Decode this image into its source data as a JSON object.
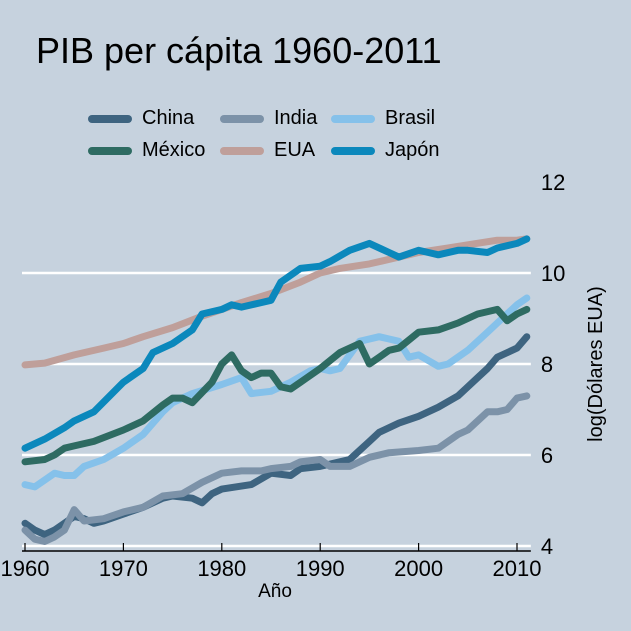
{
  "chart_data": {
    "type": "line",
    "title": "PIB per cápita 1960-2011",
    "xlabel": "Año",
    "ylabel": "log(Dólares EUA)",
    "xlim": [
      1960,
      2011
    ],
    "ylim": [
      4,
      12
    ],
    "x_ticks": [
      1960,
      1970,
      1980,
      1990,
      2000,
      2010
    ],
    "y_ticks": [
      4,
      6,
      8,
      10,
      12
    ],
    "y_axis_side": "right",
    "grid": "horizontal",
    "legend_position": "top",
    "legend_columns": 3,
    "background_color": "#c6d2de",
    "series": [
      {
        "name": "China",
        "color": "#3e6480",
        "points": [
          [
            1960,
            4.5
          ],
          [
            1961,
            4.35
          ],
          [
            1962,
            4.25
          ],
          [
            1963,
            4.35
          ],
          [
            1964,
            4.5
          ],
          [
            1965,
            4.65
          ],
          [
            1966,
            4.6
          ],
          [
            1967,
            4.5
          ],
          [
            1968,
            4.55
          ],
          [
            1970,
            4.7
          ],
          [
            1972,
            4.85
          ],
          [
            1974,
            5.05
          ],
          [
            1975,
            5.1
          ],
          [
            1977,
            5.05
          ],
          [
            1978,
            4.95
          ],
          [
            1979,
            5.15
          ],
          [
            1980,
            5.25
          ],
          [
            1983,
            5.35
          ],
          [
            1985,
            5.6
          ],
          [
            1987,
            5.55
          ],
          [
            1988,
            5.7
          ],
          [
            1990,
            5.75
          ],
          [
            1992,
            5.85
          ],
          [
            1993,
            5.9
          ],
          [
            1995,
            6.3
          ],
          [
            1996,
            6.5
          ],
          [
            1998,
            6.7
          ],
          [
            2000,
            6.85
          ],
          [
            2002,
            7.05
          ],
          [
            2004,
            7.3
          ],
          [
            2005,
            7.5
          ],
          [
            2007,
            7.9
          ],
          [
            2008,
            8.15
          ],
          [
            2010,
            8.35
          ],
          [
            2011,
            8.6
          ]
        ]
      },
      {
        "name": "India",
        "color": "#7c92a8",
        "points": [
          [
            1960,
            4.35
          ],
          [
            1961,
            4.15
          ],
          [
            1962,
            4.1
          ],
          [
            1963,
            4.2
          ],
          [
            1964,
            4.35
          ],
          [
            1965,
            4.8
          ],
          [
            1966,
            4.55
          ],
          [
            1968,
            4.6
          ],
          [
            1970,
            4.75
          ],
          [
            1972,
            4.85
          ],
          [
            1974,
            5.1
          ],
          [
            1976,
            5.15
          ],
          [
            1978,
            5.4
          ],
          [
            1980,
            5.6
          ],
          [
            1982,
            5.65
          ],
          [
            1984,
            5.65
          ],
          [
            1985,
            5.7
          ],
          [
            1987,
            5.75
          ],
          [
            1988,
            5.85
          ],
          [
            1990,
            5.9
          ],
          [
            1991,
            5.75
          ],
          [
            1993,
            5.75
          ],
          [
            1995,
            5.95
          ],
          [
            1997,
            6.05
          ],
          [
            2000,
            6.1
          ],
          [
            2002,
            6.15
          ],
          [
            2004,
            6.45
          ],
          [
            2005,
            6.55
          ],
          [
            2007,
            6.95
          ],
          [
            2008,
            6.95
          ],
          [
            2009,
            7.0
          ],
          [
            2010,
            7.25
          ],
          [
            2011,
            7.3
          ]
        ]
      },
      {
        "name": "Brasil",
        "color": "#85c1ea",
        "points": [
          [
            1960,
            5.35
          ],
          [
            1961,
            5.3
          ],
          [
            1963,
            5.6
          ],
          [
            1964,
            5.55
          ],
          [
            1965,
            5.55
          ],
          [
            1966,
            5.75
          ],
          [
            1968,
            5.9
          ],
          [
            1970,
            6.15
          ],
          [
            1972,
            6.45
          ],
          [
            1974,
            6.95
          ],
          [
            1975,
            7.15
          ],
          [
            1977,
            7.35
          ],
          [
            1980,
            7.55
          ],
          [
            1982,
            7.7
          ],
          [
            1983,
            7.35
          ],
          [
            1985,
            7.4
          ],
          [
            1987,
            7.6
          ],
          [
            1989,
            7.85
          ],
          [
            1990,
            7.9
          ],
          [
            1991,
            7.85
          ],
          [
            1992,
            7.9
          ],
          [
            1994,
            8.5
          ],
          [
            1996,
            8.6
          ],
          [
            1997,
            8.55
          ],
          [
            1998,
            8.5
          ],
          [
            1999,
            8.15
          ],
          [
            2000,
            8.2
          ],
          [
            2002,
            7.95
          ],
          [
            2003,
            8.0
          ],
          [
            2005,
            8.3
          ],
          [
            2007,
            8.7
          ],
          [
            2008,
            8.9
          ],
          [
            2010,
            9.3
          ],
          [
            2011,
            9.45
          ]
        ]
      },
      {
        "name": "México",
        "color": "#2e6b62",
        "points": [
          [
            1960,
            5.85
          ],
          [
            1962,
            5.9
          ],
          [
            1963,
            6.0
          ],
          [
            1964,
            6.15
          ],
          [
            1965,
            6.2
          ],
          [
            1967,
            6.3
          ],
          [
            1970,
            6.55
          ],
          [
            1972,
            6.75
          ],
          [
            1974,
            7.1
          ],
          [
            1975,
            7.25
          ],
          [
            1976,
            7.25
          ],
          [
            1977,
            7.15
          ],
          [
            1979,
            7.6
          ],
          [
            1980,
            8.0
          ],
          [
            1981,
            8.2
          ],
          [
            1982,
            7.85
          ],
          [
            1983,
            7.7
          ],
          [
            1984,
            7.8
          ],
          [
            1985,
            7.8
          ],
          [
            1986,
            7.5
          ],
          [
            1987,
            7.45
          ],
          [
            1988,
            7.6
          ],
          [
            1990,
            7.9
          ],
          [
            1992,
            8.25
          ],
          [
            1994,
            8.45
          ],
          [
            1995,
            8.0
          ],
          [
            1996,
            8.15
          ],
          [
            1997,
            8.3
          ],
          [
            1998,
            8.35
          ],
          [
            2000,
            8.7
          ],
          [
            2002,
            8.75
          ],
          [
            2004,
            8.9
          ],
          [
            2006,
            9.1
          ],
          [
            2008,
            9.2
          ],
          [
            2009,
            8.95
          ],
          [
            2010,
            9.1
          ],
          [
            2011,
            9.2
          ]
        ]
      },
      {
        "name": "EUA",
        "color": "#bf9f9a",
        "points": [
          [
            1960,
            7.98
          ],
          [
            1962,
            8.02
          ],
          [
            1965,
            8.2
          ],
          [
            1968,
            8.35
          ],
          [
            1970,
            8.45
          ],
          [
            1972,
            8.6
          ],
          [
            1975,
            8.8
          ],
          [
            1978,
            9.05
          ],
          [
            1980,
            9.2
          ],
          [
            1982,
            9.35
          ],
          [
            1985,
            9.55
          ],
          [
            1988,
            9.8
          ],
          [
            1990,
            10.0
          ],
          [
            1992,
            10.1
          ],
          [
            1995,
            10.2
          ],
          [
            1998,
            10.35
          ],
          [
            2000,
            10.45
          ],
          [
            2003,
            10.55
          ],
          [
            2005,
            10.62
          ],
          [
            2008,
            10.72
          ],
          [
            2010,
            10.72
          ],
          [
            2011,
            10.75
          ]
        ]
      },
      {
        "name": "Japón",
        "color": "#0b88bc",
        "points": [
          [
            1960,
            6.15
          ],
          [
            1962,
            6.35
          ],
          [
            1964,
            6.6
          ],
          [
            1965,
            6.75
          ],
          [
            1967,
            6.95
          ],
          [
            1970,
            7.6
          ],
          [
            1972,
            7.9
          ],
          [
            1973,
            8.25
          ],
          [
            1975,
            8.45
          ],
          [
            1977,
            8.75
          ],
          [
            1978,
            9.1
          ],
          [
            1980,
            9.2
          ],
          [
            1981,
            9.3
          ],
          [
            1982,
            9.25
          ],
          [
            1984,
            9.35
          ],
          [
            1985,
            9.4
          ],
          [
            1986,
            9.8
          ],
          [
            1988,
            10.1
          ],
          [
            1990,
            10.15
          ],
          [
            1991,
            10.25
          ],
          [
            1993,
            10.5
          ],
          [
            1995,
            10.65
          ],
          [
            1997,
            10.45
          ],
          [
            1998,
            10.35
          ],
          [
            2000,
            10.5
          ],
          [
            2001,
            10.45
          ],
          [
            2002,
            10.4
          ],
          [
            2004,
            10.5
          ],
          [
            2005,
            10.5
          ],
          [
            2007,
            10.45
          ],
          [
            2008,
            10.55
          ],
          [
            2010,
            10.65
          ],
          [
            2011,
            10.75
          ]
        ]
      }
    ]
  }
}
